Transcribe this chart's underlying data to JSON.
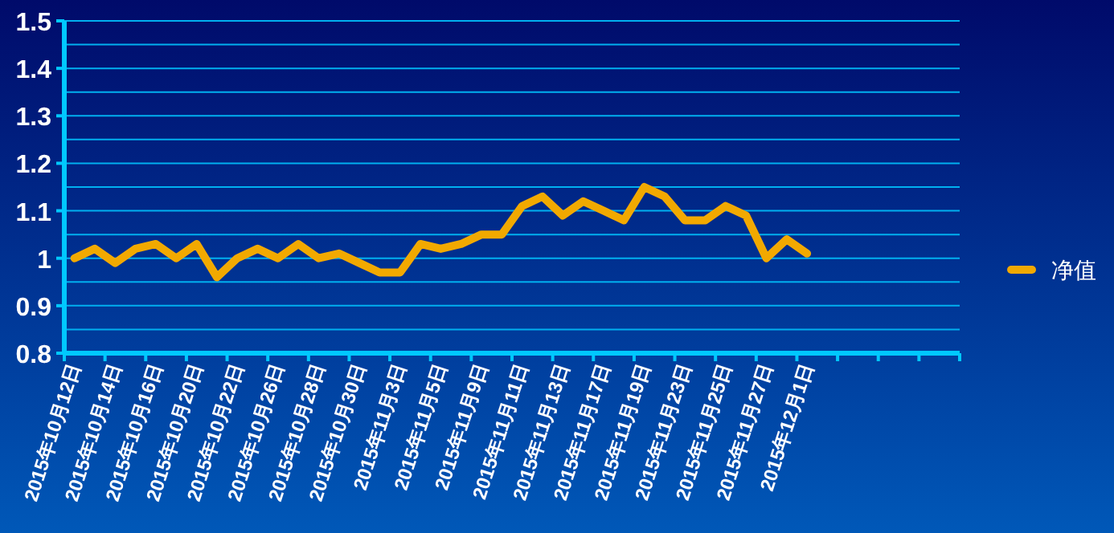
{
  "chart_data": {
    "type": "line",
    "categories": [
      "2015年10月12日",
      null,
      "2015年10月14日",
      null,
      "2015年10月16日",
      null,
      "2015年10月20日",
      null,
      "2015年10月22日",
      null,
      "2015年10月26日",
      null,
      "2015年10月28日",
      null,
      "2015年10月30日",
      null,
      "2015年11月3日",
      null,
      "2015年11月5日",
      null,
      "2015年11月9日",
      null,
      "2015年11月11日",
      null,
      "2015年11月13日",
      null,
      "2015年11月17日",
      null,
      "2015年11月19日",
      null,
      "2015年11月23日",
      null,
      "2015年11月25日",
      null,
      "2015年11月27日",
      null,
      "2015年12月1日",
      null,
      null,
      null,
      null,
      null,
      null,
      null
    ],
    "series": [
      {
        "name": "净值",
        "color": "#f2a900",
        "values": [
          1.0,
          1.02,
          0.99,
          1.02,
          1.03,
          1.0,
          1.03,
          0.96,
          1.0,
          1.02,
          1.0,
          1.03,
          1.0,
          1.01,
          0.99,
          0.97,
          0.97,
          1.03,
          1.02,
          1.03,
          1.05,
          1.05,
          1.11,
          1.13,
          1.09,
          1.12,
          1.1,
          1.08,
          1.15,
          1.13,
          1.08,
          1.08,
          1.11,
          1.09,
          1.0,
          1.04,
          1.01,
          null,
          null,
          null,
          null,
          null,
          null,
          null
        ]
      }
    ],
    "ylim": [
      0.8,
      1.5
    ],
    "yticks": [
      0.8,
      {
        "value": 0.85,
        "label": null
      },
      0.9,
      {
        "value": 0.95,
        "label": null
      },
      1,
      {
        "value": 1.05,
        "label": null
      },
      1.1,
      {
        "value": 1.15,
        "label": null
      },
      1.2,
      {
        "value": 1.25,
        "label": null
      },
      1.3,
      {
        "value": 1.35,
        "label": null
      },
      1.4,
      {
        "value": 1.45,
        "label": null
      },
      1.5
    ],
    "grid": "y",
    "legend": "right",
    "marker": "none",
    "line_style": "solid"
  }
}
